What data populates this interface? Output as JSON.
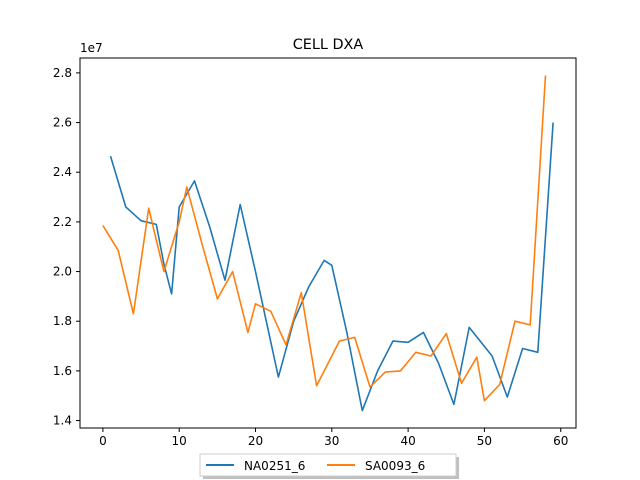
{
  "chart_data": {
    "type": "line",
    "title": "CELL DXA",
    "xlabel": "",
    "ylabel": "",
    "y_multiplier_label": "1e7",
    "xlim": [
      -3.0,
      62.0
    ],
    "ylim": [
      1.37,
      2.86
    ],
    "x_ticks": [
      {
        "value": 0,
        "label": "0"
      },
      {
        "value": 10,
        "label": "10"
      },
      {
        "value": 20,
        "label": "20"
      },
      {
        "value": 30,
        "label": "30"
      },
      {
        "value": 40,
        "label": "40"
      },
      {
        "value": 50,
        "label": "50"
      },
      {
        "value": 60,
        "label": "60"
      }
    ],
    "y_ticks": [
      {
        "value": 1.4,
        "label": "1.4"
      },
      {
        "value": 1.6,
        "label": "1.6"
      },
      {
        "value": 1.8,
        "label": "1.8"
      },
      {
        "value": 2.0,
        "label": "2.0"
      },
      {
        "value": 2.2,
        "label": "2.2"
      },
      {
        "value": 2.4,
        "label": "2.4"
      },
      {
        "value": 2.6,
        "label": "2.6"
      },
      {
        "value": 2.8,
        "label": "2.8"
      }
    ],
    "grid": false,
    "legend_position": "bottom-center-outside",
    "series": [
      {
        "name": "NA0251_6",
        "color": "#1f77b4",
        "points": [
          [
            1,
            2.465
          ],
          [
            3,
            2.26
          ],
          [
            5,
            2.205
          ],
          [
            7,
            2.19
          ],
          [
            8,
            2.03
          ],
          [
            9,
            1.91
          ],
          [
            10,
            2.26
          ],
          [
            12,
            2.365
          ],
          [
            14,
            2.18
          ],
          [
            16,
            1.965
          ],
          [
            18,
            2.27
          ],
          [
            20,
            2.0
          ],
          [
            23,
            1.575
          ],
          [
            25,
            1.8
          ],
          [
            27,
            1.94
          ],
          [
            29,
            2.045
          ],
          [
            30,
            2.025
          ],
          [
            32,
            1.75
          ],
          [
            34,
            1.44
          ],
          [
            36,
            1.6
          ],
          [
            38,
            1.72
          ],
          [
            40,
            1.715
          ],
          [
            42,
            1.755
          ],
          [
            44,
            1.63
          ],
          [
            46,
            1.465
          ],
          [
            48,
            1.775
          ],
          [
            51,
            1.66
          ],
          [
            53,
            1.495
          ],
          [
            55,
            1.69
          ],
          [
            57,
            1.675
          ],
          [
            59,
            2.6
          ]
        ]
      },
      {
        "name": "SA0093_6",
        "color": "#ff7f0e",
        "points": [
          [
            0,
            2.185
          ],
          [
            2,
            2.085
          ],
          [
            4,
            1.83
          ],
          [
            6,
            2.255
          ],
          [
            8,
            2.0
          ],
          [
            10,
            2.2
          ],
          [
            11,
            2.34
          ],
          [
            13,
            2.11
          ],
          [
            15,
            1.89
          ],
          [
            17,
            2.0
          ],
          [
            19,
            1.755
          ],
          [
            20,
            1.87
          ],
          [
            22,
            1.84
          ],
          [
            24,
            1.705
          ],
          [
            26,
            1.915
          ],
          [
            28,
            1.54
          ],
          [
            31,
            1.72
          ],
          [
            33,
            1.735
          ],
          [
            35,
            1.535
          ],
          [
            37,
            1.595
          ],
          [
            39,
            1.6
          ],
          [
            41,
            1.675
          ],
          [
            43,
            1.66
          ],
          [
            45,
            1.75
          ],
          [
            47,
            1.55
          ],
          [
            49,
            1.655
          ],
          [
            50,
            1.48
          ],
          [
            52,
            1.545
          ],
          [
            54,
            1.8
          ],
          [
            56,
            1.785
          ],
          [
            58,
            2.79
          ]
        ]
      }
    ]
  }
}
